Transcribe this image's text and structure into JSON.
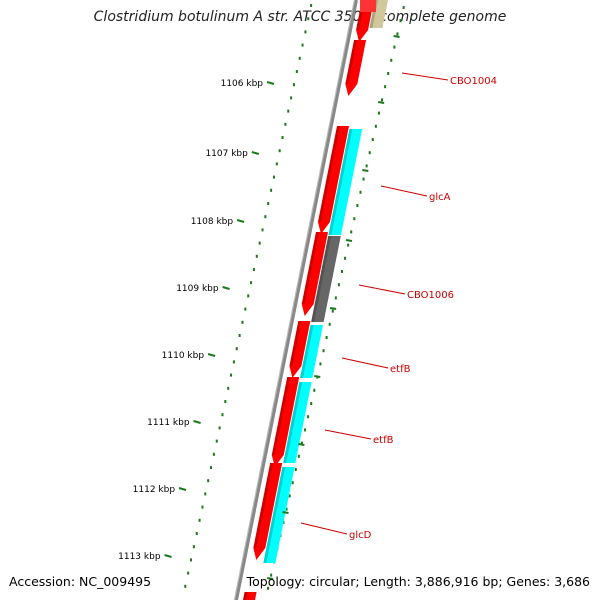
{
  "title": "Clostridium botulinum A str. ATCC 3502, complete genome",
  "footer": {
    "accession": "Accession: NC_009495",
    "summary": "Topology: circular; Length: 3,886,916 bp; Genes: 3,686"
  },
  "ticks": [
    "1106 kbp",
    "1107 kbp",
    "1108 kbp",
    "1109 kbp",
    "1110 kbp",
    "1111 kbp",
    "1112 kbp",
    "1113 kbp"
  ],
  "genes": [
    "CBO1004",
    "glcA",
    "CBO1006",
    "etfB",
    "etfB",
    "glcD"
  ],
  "colors": {
    "forward_cds": "#ff0000",
    "reverse_cds": "#00ffff",
    "other_cds": "#666666",
    "partial_feature": "#d2c79a",
    "tick": "#1a7a1a",
    "backbone": "#888888",
    "label": "#cc0000"
  }
}
